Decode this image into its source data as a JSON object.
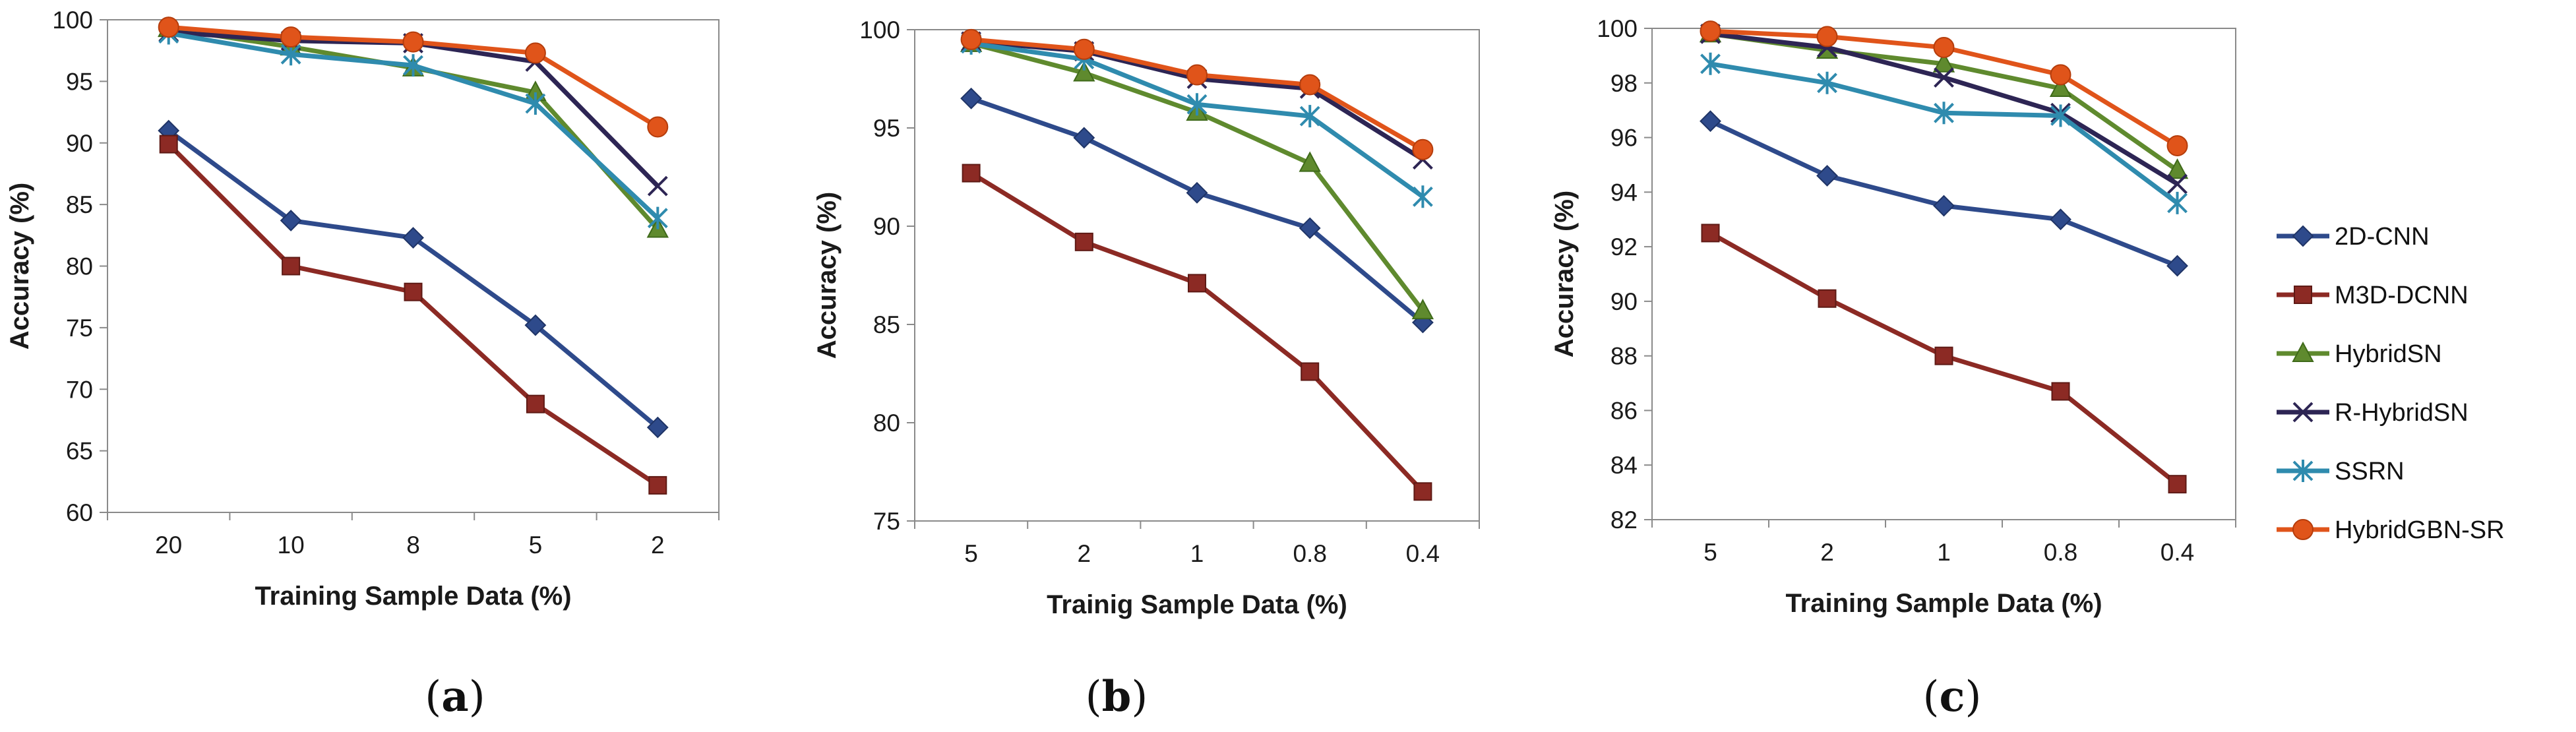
{
  "series_styles": [
    {
      "name": "2D-CNN",
      "color": "#2e4a8b",
      "marker": "diamond"
    },
    {
      "name": "M3D-DCNN",
      "color": "#8c2a24",
      "marker": "square"
    },
    {
      "name": "HybridSN",
      "color": "#5f8a2e",
      "marker": "triangle"
    },
    {
      "name": "R-HybridSN",
      "color": "#2d2554",
      "marker": "x"
    },
    {
      "name": "SSRN",
      "color": "#2f8bae",
      "marker": "star"
    },
    {
      "name": "HybridGBN-SR",
      "color": "#e0541a",
      "marker": "circle"
    }
  ],
  "chart_data": [
    {
      "type": "line",
      "panel_label": "a",
      "categories": [
        "20",
        "10",
        "8",
        "5",
        "2"
      ],
      "xlabel": "Training Sample Data (%)",
      "ylabel": "Accuracy (%)",
      "ylim": [
        60,
        100
      ],
      "yticks": [
        60,
        65,
        70,
        75,
        80,
        85,
        90,
        95,
        100
      ],
      "series": [
        {
          "name": "2D-CNN",
          "values": [
            91.0,
            83.7,
            82.3,
            75.2,
            66.9
          ]
        },
        {
          "name": "M3D-DCNN",
          "values": [
            89.9,
            80.0,
            77.9,
            68.8,
            62.2
          ]
        },
        {
          "name": "HybridSN",
          "values": [
            99.3,
            97.8,
            96.1,
            94.1,
            83.0
          ]
        },
        {
          "name": "R-HybridSN",
          "values": [
            99.0,
            98.3,
            98.1,
            96.6,
            86.5
          ]
        },
        {
          "name": "SSRN",
          "values": [
            98.9,
            97.2,
            96.3,
            93.2,
            83.9
          ]
        },
        {
          "name": "HybridGBN-SR",
          "values": [
            99.4,
            98.6,
            98.2,
            97.3,
            91.3
          ]
        }
      ]
    },
    {
      "type": "line",
      "panel_label": "b",
      "categories": [
        "5",
        "2",
        "1",
        "0.8",
        "0.4"
      ],
      "xlabel": "Trainig Sample Data  (%)",
      "ylabel": "Accuracy (%)",
      "ylim": [
        75,
        100
      ],
      "yticks": [
        75,
        80,
        85,
        90,
        95,
        100
      ],
      "series": [
        {
          "name": "2D-CNN",
          "values": [
            96.5,
            94.5,
            91.7,
            89.9,
            85.1
          ]
        },
        {
          "name": "M3D-DCNN",
          "values": [
            92.7,
            89.2,
            87.1,
            82.6,
            76.5
          ]
        },
        {
          "name": "HybridSN",
          "values": [
            99.3,
            97.8,
            95.8,
            93.2,
            85.7
          ]
        },
        {
          "name": "R-HybridSN",
          "values": [
            99.4,
            98.9,
            97.5,
            97.0,
            93.4
          ]
        },
        {
          "name": "SSRN",
          "values": [
            99.3,
            98.5,
            96.2,
            95.6,
            91.5
          ]
        },
        {
          "name": "HybridGBN-SR",
          "values": [
            99.5,
            99.0,
            97.7,
            97.2,
            93.9
          ]
        }
      ]
    },
    {
      "type": "line",
      "panel_label": "c",
      "categories": [
        "5",
        "2",
        "1",
        "0.8",
        "0.4"
      ],
      "xlabel": "Training Sample Data (%)",
      "ylabel": "Accuracy (%)",
      "ylim": [
        82,
        100
      ],
      "yticks": [
        82,
        84,
        86,
        88,
        90,
        92,
        94,
        96,
        98,
        100
      ],
      "series": [
        {
          "name": "2D-CNN",
          "values": [
            96.6,
            94.6,
            93.5,
            93.0,
            91.3
          ]
        },
        {
          "name": "M3D-DCNN",
          "values": [
            92.5,
            90.1,
            88.0,
            86.7,
            83.3
          ]
        },
        {
          "name": "HybridSN",
          "values": [
            99.8,
            99.2,
            98.7,
            97.8,
            94.8
          ]
        },
        {
          "name": "R-HybridSN",
          "values": [
            99.8,
            99.3,
            98.2,
            96.9,
            94.3
          ]
        },
        {
          "name": "SSRN",
          "values": [
            98.7,
            98.0,
            96.9,
            96.8,
            93.6
          ]
        },
        {
          "name": "HybridGBN-SR",
          "values": [
            99.9,
            99.7,
            99.3,
            98.3,
            95.7
          ]
        }
      ]
    }
  ]
}
